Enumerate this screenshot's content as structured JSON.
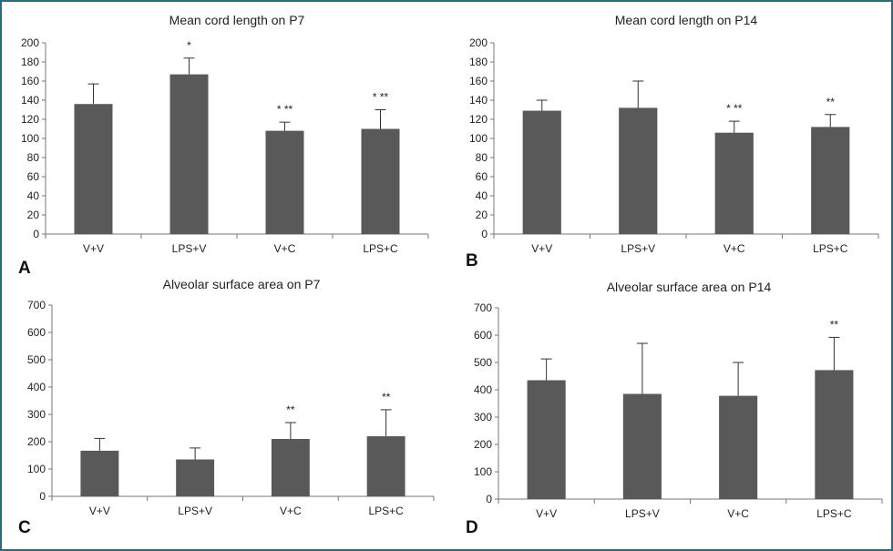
{
  "colors": {
    "bar": "#595959",
    "axis": "#777777",
    "border": "#2a6a7a"
  },
  "chart_data": [
    {
      "panel": "A",
      "type": "bar",
      "title": "Mean cord length on P7",
      "categories": [
        "V+V",
        "LPS+V",
        "V+C",
        "LPS+C"
      ],
      "values": [
        136,
        167,
        108,
        110
      ],
      "errors": [
        21,
        17,
        9,
        20
      ],
      "annotations": [
        "",
        "*",
        "* **",
        "* **"
      ],
      "ylim": [
        0,
        200
      ],
      "yticks": [
        "0",
        "20",
        "40",
        "60",
        "80",
        "100",
        "120",
        "140",
        "160",
        "180",
        "200"
      ]
    },
    {
      "panel": "B",
      "type": "bar",
      "title": "Mean cord length on P14",
      "categories": [
        "V+V",
        "LPS+V",
        "V+C",
        "LPS+C"
      ],
      "values": [
        129,
        132,
        106,
        112
      ],
      "errors": [
        11,
        28,
        12,
        13
      ],
      "annotations": [
        "",
        "",
        "* **",
        "**"
      ],
      "ylim": [
        0,
        200
      ],
      "yticks": [
        "0",
        "20",
        "40",
        "60",
        "80",
        "100",
        "120",
        "140",
        "160",
        "180",
        "200"
      ]
    },
    {
      "panel": "C",
      "type": "bar",
      "title": "Alveolar surface area on P7",
      "categories": [
        "V+V",
        "LPS+V",
        "V+C",
        "LPS+C"
      ],
      "values": [
        167,
        135,
        210,
        220
      ],
      "errors": [
        45,
        42,
        60,
        97
      ],
      "annotations": [
        "",
        "",
        "**",
        "**"
      ],
      "ylim": [
        0,
        700
      ],
      "yticks": [
        "0",
        "100",
        "200",
        "300",
        "400",
        "500",
        "600",
        "700"
      ]
    },
    {
      "panel": "D",
      "type": "bar",
      "title": "Alveolar surface area on P14",
      "categories": [
        "V+V",
        "LPS+V",
        "V+C",
        "LPS+C"
      ],
      "values": [
        435,
        385,
        378,
        472
      ],
      "errors": [
        78,
        185,
        122,
        120
      ],
      "annotations": [
        "",
        "",
        "",
        "**"
      ],
      "ylim": [
        0,
        700
      ],
      "yticks": [
        "0",
        "100",
        "200",
        "300",
        "400",
        "500",
        "600",
        "700"
      ]
    }
  ]
}
